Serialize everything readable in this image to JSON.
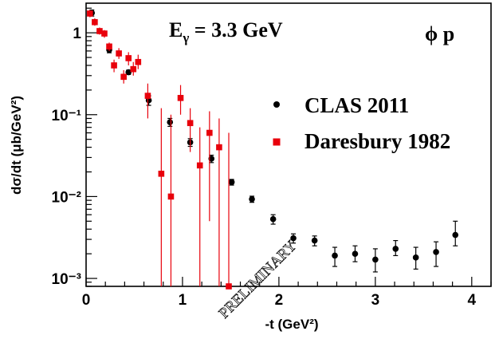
{
  "chart_data": {
    "type": "scatter",
    "xlabel": "-t (GeV²)",
    "ylabel": "dσ/dt (μb/GeV²)",
    "xlim": [
      0,
      4.2
    ],
    "ylim": [
      0.0008,
      2.3
    ],
    "y_scale": "log",
    "x_ticks": [
      0,
      1,
      2,
      3,
      4
    ],
    "x_tick_labels": [
      "0",
      "1",
      "2",
      "3",
      "4"
    ],
    "y_ticks": [
      0.001,
      0.01,
      0.1,
      1
    ],
    "y_tick_labels": [
      "10⁻³",
      "10⁻²",
      "10⁻¹",
      "1"
    ],
    "annotations": {
      "energy": "E",
      "energy_sub": "γ",
      "energy_value": " = 3.3 GeV",
      "reaction": "ϕ p",
      "watermark": "PRELIMINARY"
    },
    "legend_position": "upper-right",
    "series": [
      {
        "name": "CLAS 2011",
        "marker": "circle",
        "color": "#000000",
        "points": [
          {
            "x": 0.06,
            "y": 1.75,
            "lo": 1.6,
            "hi": 1.9
          },
          {
            "x": 0.24,
            "y": 0.62,
            "lo": 0.57,
            "hi": 0.67
          },
          {
            "x": 0.44,
            "y": 0.33,
            "lo": 0.31,
            "hi": 0.35
          },
          {
            "x": 0.65,
            "y": 0.15,
            "lo": 0.13,
            "hi": 0.17
          },
          {
            "x": 0.87,
            "y": 0.081,
            "lo": 0.072,
            "hi": 0.09
          },
          {
            "x": 1.08,
            "y": 0.046,
            "lo": 0.041,
            "hi": 0.051
          },
          {
            "x": 1.3,
            "y": 0.029,
            "lo": 0.026,
            "hi": 0.032
          },
          {
            "x": 1.51,
            "y": 0.015,
            "lo": 0.0138,
            "hi": 0.0162
          },
          {
            "x": 1.72,
            "y": 0.0093,
            "lo": 0.0085,
            "hi": 0.0101
          },
          {
            "x": 1.94,
            "y": 0.0053,
            "lo": 0.0046,
            "hi": 0.006
          },
          {
            "x": 2.15,
            "y": 0.0031,
            "lo": 0.0027,
            "hi": 0.0035
          },
          {
            "x": 2.37,
            "y": 0.0029,
            "lo": 0.0025,
            "hi": 0.0033
          },
          {
            "x": 2.58,
            "y": 0.0019,
            "lo": 0.0014,
            "hi": 0.0024
          },
          {
            "x": 2.79,
            "y": 0.002,
            "lo": 0.0016,
            "hi": 0.0025
          },
          {
            "x": 3.0,
            "y": 0.0017,
            "lo": 0.0012,
            "hi": 0.0023
          },
          {
            "x": 3.21,
            "y": 0.0023,
            "lo": 0.0019,
            "hi": 0.0029
          },
          {
            "x": 3.42,
            "y": 0.0018,
            "lo": 0.0013,
            "hi": 0.0024
          },
          {
            "x": 3.63,
            "y": 0.0021,
            "lo": 0.0014,
            "hi": 0.0028
          },
          {
            "x": 3.83,
            "y": 0.0034,
            "lo": 0.0025,
            "hi": 0.005
          }
        ]
      },
      {
        "name": "Daresbury 1982",
        "marker": "square",
        "color": "#e8000b",
        "points": [
          {
            "x": 0.04,
            "y": 1.72,
            "lo": 1.55,
            "hi": 1.9
          },
          {
            "x": 0.09,
            "y": 1.35,
            "lo": 1.22,
            "hi": 1.5
          },
          {
            "x": 0.14,
            "y": 1.05,
            "lo": 0.95,
            "hi": 1.16
          },
          {
            "x": 0.19,
            "y": 0.98,
            "lo": 0.87,
            "hi": 1.08
          },
          {
            "x": 0.24,
            "y": 0.68,
            "lo": 0.6,
            "hi": 0.76
          },
          {
            "x": 0.29,
            "y": 0.4,
            "lo": 0.33,
            "hi": 0.47
          },
          {
            "x": 0.34,
            "y": 0.56,
            "lo": 0.48,
            "hi": 0.65
          },
          {
            "x": 0.39,
            "y": 0.29,
            "lo": 0.24,
            "hi": 0.35
          },
          {
            "x": 0.44,
            "y": 0.49,
            "lo": 0.4,
            "hi": 0.58
          },
          {
            "x": 0.49,
            "y": 0.36,
            "lo": 0.3,
            "hi": 0.44
          },
          {
            "x": 0.54,
            "y": 0.44,
            "lo": 0.36,
            "hi": 0.54
          },
          {
            "x": 0.64,
            "y": 0.17,
            "lo": 0.09,
            "hi": 0.24
          },
          {
            "x": 0.78,
            "y": 0.019,
            "lo": 0.0008,
            "hi": 0.12
          },
          {
            "x": 0.88,
            "y": 0.01,
            "lo": 0.0008,
            "hi": 0.1
          },
          {
            "x": 0.98,
            "y": 0.16,
            "lo": 0.1,
            "hi": 0.23
          },
          {
            "x": 1.08,
            "y": 0.079,
            "lo": 0.035,
            "hi": 0.12
          },
          {
            "x": 1.18,
            "y": 0.024,
            "lo": 0.0008,
            "hi": 0.07
          },
          {
            "x": 1.28,
            "y": 0.06,
            "lo": 0.005,
            "hi": 0.11
          },
          {
            "x": 1.38,
            "y": 0.04,
            "lo": 0.0008,
            "hi": 0.09
          },
          {
            "x": 1.48,
            "y": 0.0008,
            "lo": 0.0008,
            "hi": 0.06
          }
        ]
      }
    ]
  }
}
